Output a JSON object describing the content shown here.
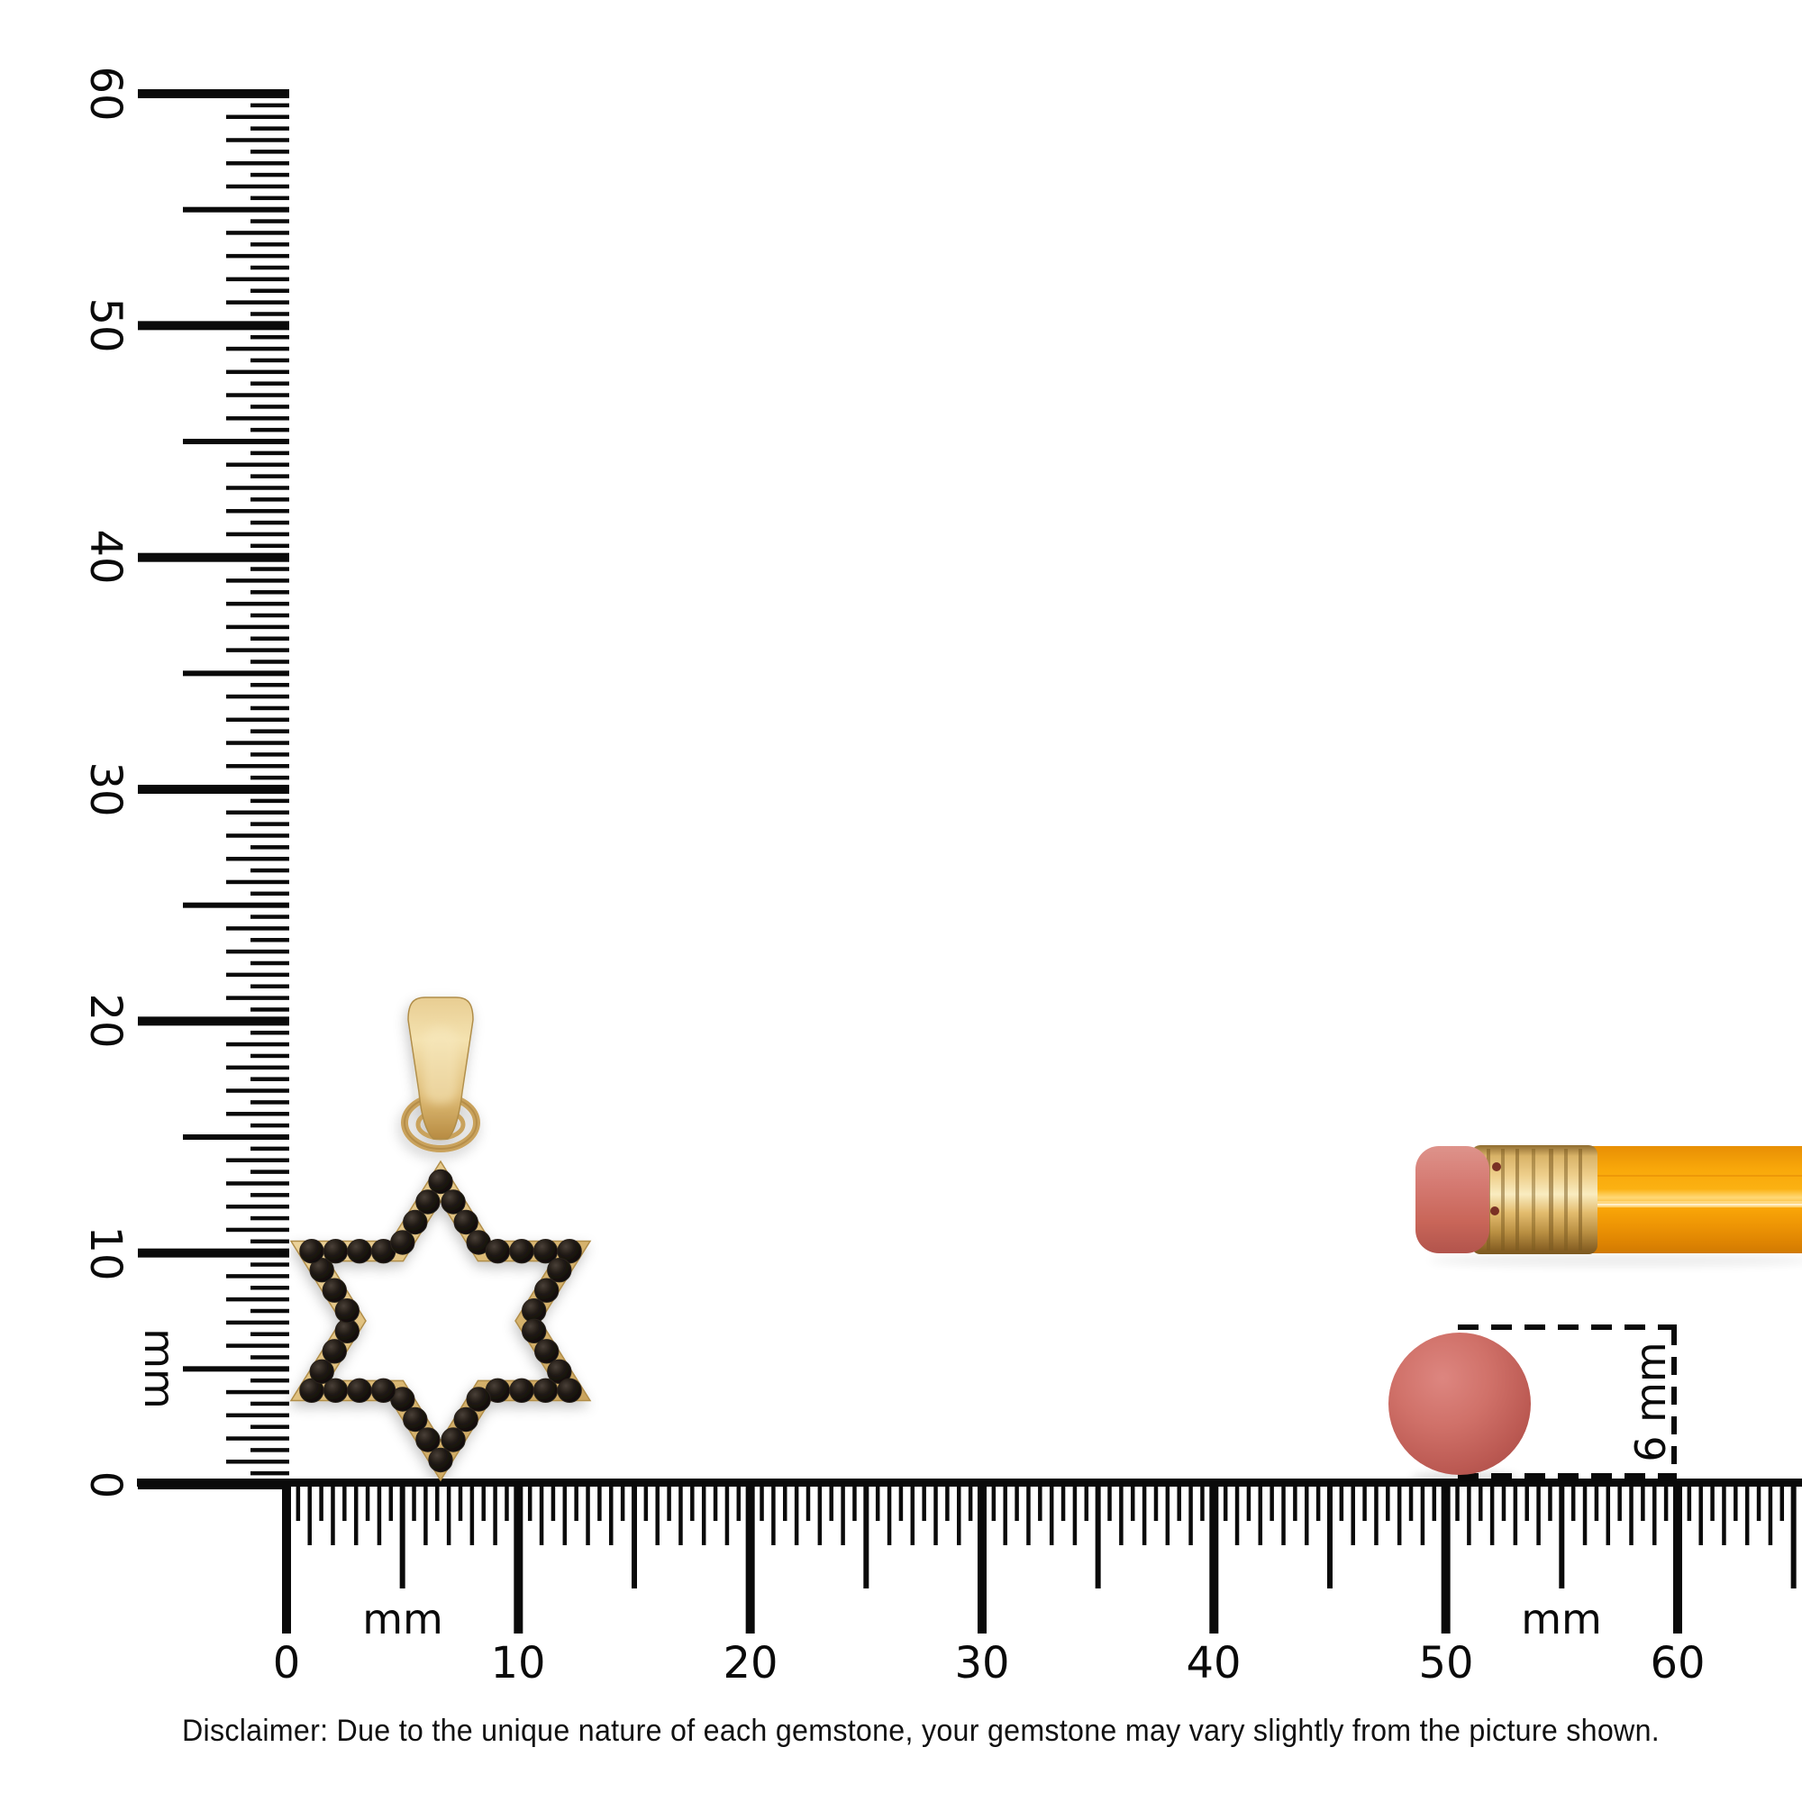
{
  "scene": {
    "background": "#ffffff"
  },
  "vertical_ruler": {
    "unit_label": "mm",
    "tick_labels": [
      "0",
      "10",
      "20",
      "30",
      "40",
      "50",
      "60"
    ]
  },
  "horizontal_ruler": {
    "unit_label_left": "mm",
    "unit_label_right": "mm",
    "tick_labels": [
      "0",
      "10",
      "20",
      "30",
      "40",
      "50",
      "60"
    ]
  },
  "measurement_box": {
    "label": "6 mm"
  },
  "disclaimer": {
    "text": "Disclaimer: Due to the unique nature of each gemstone, your gemstone may vary slightly from the picture shown."
  },
  "objects": {
    "pendant": {
      "icon": "star-of-david-pendant-icon",
      "metal_color": "#D9B873",
      "stone_color": "#16100C"
    },
    "pencil": {
      "icon": "pencil-icon",
      "body_color": "#F79A0A",
      "eraser_color": "#CC6A63",
      "ferrule_color": "#E2BE77"
    },
    "gemstone": {
      "icon": "round-gemstone-icon",
      "color": "#CC6A63"
    }
  },
  "colors": {
    "ruler_ink": "#0a0a0a"
  }
}
